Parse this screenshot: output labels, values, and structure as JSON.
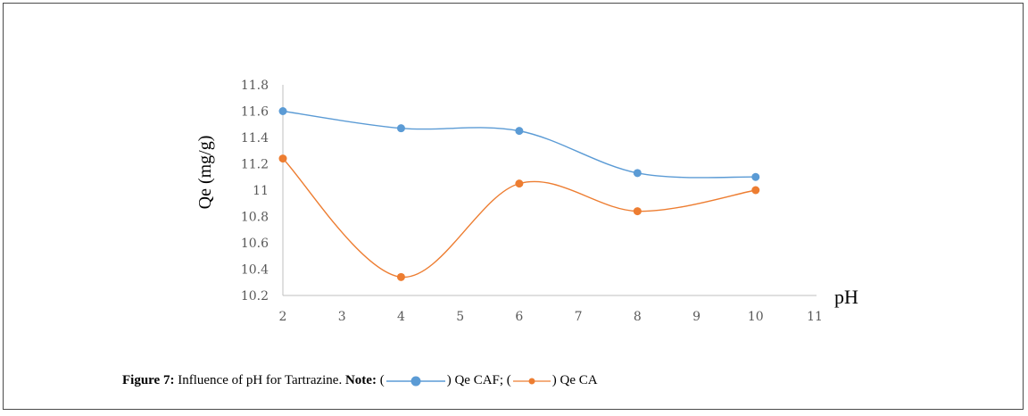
{
  "chart_data": {
    "type": "line",
    "xlabel": "pH",
    "ylabel": "Qe (mg/g)",
    "xlim": [
      2,
      11
    ],
    "ylim": [
      10.2,
      11.8
    ],
    "x_ticks": [
      "2",
      "3",
      "4",
      "5",
      "6",
      "7",
      "8",
      "9",
      "10",
      "11"
    ],
    "y_ticks": [
      "10.2",
      "10.4",
      "10.6",
      "10.8",
      "11",
      "11.2",
      "11.4",
      "11.6",
      "11.8"
    ],
    "series": [
      {
        "name": "Qe CAF",
        "color": "#5b9bd5",
        "x": [
          2,
          4,
          6,
          8,
          10
        ],
        "y": [
          11.6,
          11.47,
          11.45,
          11.13,
          11.1
        ]
      },
      {
        "name": "Qe CA",
        "color": "#ed7d31",
        "x": [
          2,
          4,
          6,
          8,
          10
        ],
        "y": [
          11.24,
          10.34,
          11.05,
          10.84,
          11.0
        ]
      }
    ]
  },
  "caption": {
    "figure_label": "Figure 7:",
    "text": "Influence of pH for Tartrazine.",
    "note_label": "Note:",
    "open_paren": "(",
    "series1_text": ") Qe CAF; (",
    "series2_text": ") Qe CA"
  }
}
